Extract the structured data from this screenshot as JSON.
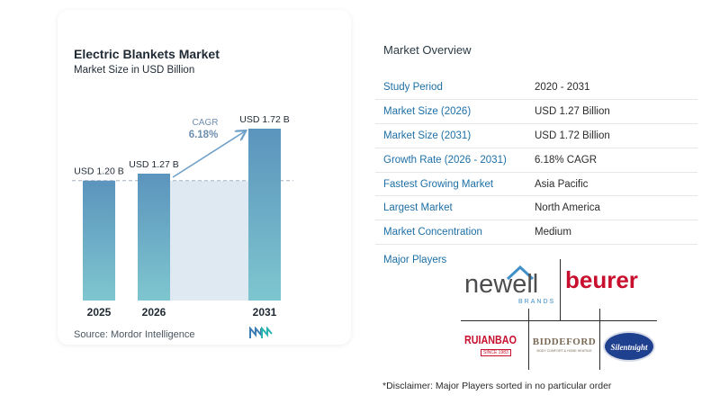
{
  "chart_data": {
    "type": "bar",
    "title": "Electric Blankets Market",
    "subtitle": "Market Size in USD Billion",
    "categories": [
      "2025",
      "2026",
      "2031"
    ],
    "values": [
      1.2,
      1.27,
      1.72
    ],
    "value_labels": [
      "USD 1.20 B",
      "USD 1.27 B",
      "USD 1.72 B"
    ],
    "cagr_label": "CAGR",
    "cagr_value": "6.18%",
    "xlabel": "",
    "ylabel": "",
    "ylim": [
      0,
      1.72
    ],
    "grid": false,
    "colors": {
      "bar_top": "#5b94bd",
      "bar_bottom": "#7ec6cf",
      "shade": "#dfe9f2",
      "arrow": "#6fa0c8",
      "cagr_text": "#6f8fb0"
    }
  },
  "source": "Source:  Mordor Intelligence",
  "overview": {
    "title": "Market Overview",
    "rows": [
      {
        "key": "Study Period",
        "value": "2020 - 2031"
      },
      {
        "key": "Market Size (2026)",
        "value": "USD 1.27 Billion"
      },
      {
        "key": "Market Size (2031)",
        "value": "USD 1.72 Billion"
      },
      {
        "key": "Growth Rate (2026 - 2031)",
        "value": "6.18% CAGR"
      },
      {
        "key": "Fastest Growing Market",
        "value": "Asia Pacific"
      },
      {
        "key": "Largest Market",
        "value": "North America"
      },
      {
        "key": "Market Concentration",
        "value": "Medium"
      }
    ]
  },
  "major_players": {
    "label": "Major Players",
    "logos": {
      "newell": "newell",
      "newell_sub": "BRANDS",
      "beurer": "beurer",
      "ruianbao": "RUIANBAO",
      "ruianbao_sub": "SINCE 1983",
      "biddeford": "BIDDEFORD",
      "biddeford_sub": "BODY COMFORT & HOME HEATING",
      "silentnight": "Silentnight"
    }
  },
  "disclaimer": "*Disclaimer: Major Players sorted in no particular order"
}
